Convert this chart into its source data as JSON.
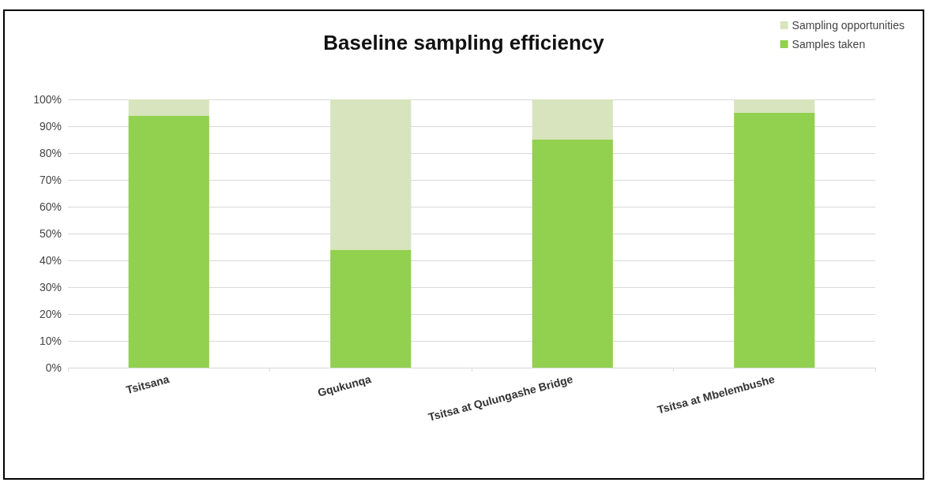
{
  "chart_data": {
    "type": "bar",
    "title": "Baseline sampling efficiency",
    "categories": [
      "Tsitsana",
      "Gqukunqa",
      "Tsitsa at Qulungashe Bridge",
      "Tsitsa at Mbelembushe"
    ],
    "series": [
      {
        "name": "Samples taken",
        "color": "#92d050",
        "values": [
          94,
          44,
          85,
          95
        ]
      },
      {
        "name": "Sampling opportunities",
        "color": "#d7e4bd",
        "values": [
          6,
          56,
          15,
          5
        ]
      }
    ],
    "stacked": true,
    "ylim": [
      0,
      100
    ],
    "yticks": [
      {
        "value": 0,
        "label": "0%"
      },
      {
        "value": 10,
        "label": "10%"
      },
      {
        "value": 20,
        "label": "20%"
      },
      {
        "value": 30,
        "label": "30%"
      },
      {
        "value": 40,
        "label": "40%"
      },
      {
        "value": 50,
        "label": "50%"
      },
      {
        "value": 60,
        "label": "60%"
      },
      {
        "value": 70,
        "label": "70%"
      },
      {
        "value": 80,
        "label": "80%"
      },
      {
        "value": 90,
        "label": "90%"
      },
      {
        "value": 100,
        "label": "100%"
      }
    ],
    "grid": "y",
    "legend": "top right"
  }
}
